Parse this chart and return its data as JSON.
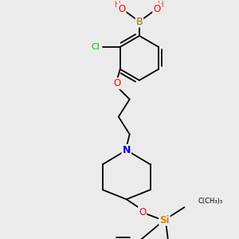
{
  "background_color": "#ebebeb",
  "figsize": [
    3.0,
    3.0
  ],
  "dpi": 100,
  "bond_color": "#000000",
  "bond_lw": 1.3,
  "colors": {
    "B": "#8B7000",
    "O": "#FF0000",
    "N": "#0000EE",
    "Cl": "#00BB00",
    "Si": "#CC8800",
    "H": "#FF4444"
  }
}
